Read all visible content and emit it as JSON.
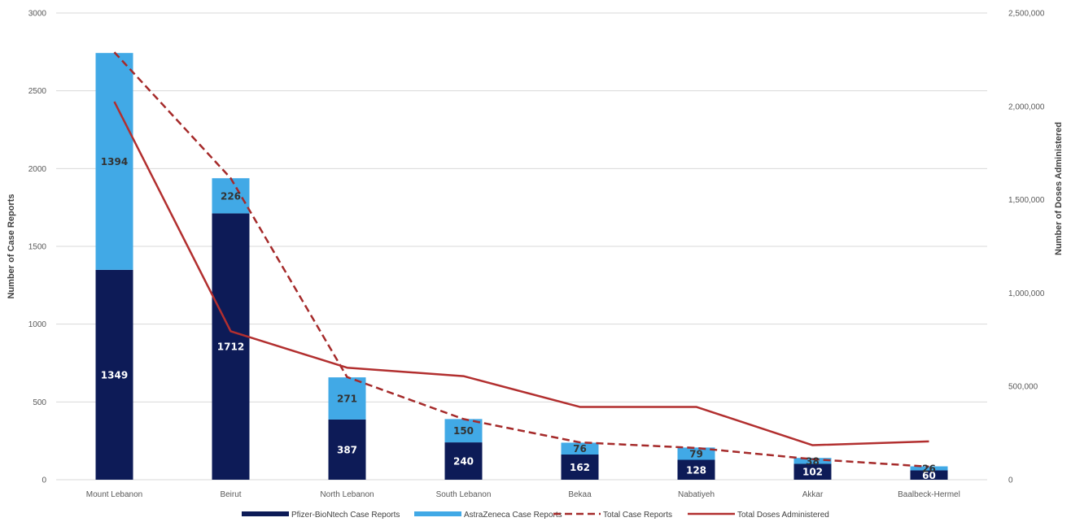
{
  "chart_data": {
    "type": "bar",
    "stacked": true,
    "categories": [
      "Mount Lebanon",
      "Beirut",
      "North Lebanon",
      "South Lebanon",
      "Bekaa",
      "Nabatiyeh",
      "Akkar",
      "Baalbeck-Hermel"
    ],
    "series": [
      {
        "name": "Pfizer-BioNtech Case Reports",
        "type": "bar",
        "axis": "left",
        "color": "#0d1b57",
        "label_color": "#ffffff",
        "values": [
          1349,
          1712,
          387,
          240,
          162,
          128,
          102,
          60
        ],
        "labels": [
          "1349",
          "1712",
          "387",
          "240",
          "162",
          "128",
          "102",
          "60"
        ]
      },
      {
        "name": "AstraZeneca Case Reports",
        "type": "bar",
        "axis": "left",
        "color": "#41a9e6",
        "label_color": "#333333",
        "values": [
          1394,
          226,
          271,
          150,
          76,
          79,
          38,
          26
        ],
        "labels": [
          "1394",
          "226",
          "271",
          "150",
          "76",
          "79",
          "38",
          "26"
        ]
      },
      {
        "name": "Total Case Reports",
        "type": "line",
        "dashed": true,
        "axis": "right",
        "color": "#a52a2a",
        "values": [
          2290000,
          1615000,
          550000,
          325000,
          200000,
          170000,
          110000,
          70000
        ]
      },
      {
        "name": "Total Doses Administered",
        "type": "line",
        "dashed": false,
        "axis": "right",
        "color": "#b22f2f",
        "values": [
          2025000,
          795000,
          600000,
          555000,
          390000,
          390000,
          185000,
          205000
        ]
      }
    ],
    "yaxis_left": {
      "label": "Number of Case Reports",
      "range": [
        0,
        3000
      ],
      "ticks": [
        "0",
        "500",
        "1000",
        "1500",
        "2000",
        "2500",
        "3000"
      ]
    },
    "yaxis_right": {
      "label": "Number of Doses Administered",
      "range": [
        0,
        2500000
      ],
      "ticks": [
        "0",
        "500,000",
        "1,000,000",
        "1,500,000",
        "2,000,000",
        "2,500,000"
      ]
    },
    "grid": true,
    "legend_position": "bottom"
  }
}
